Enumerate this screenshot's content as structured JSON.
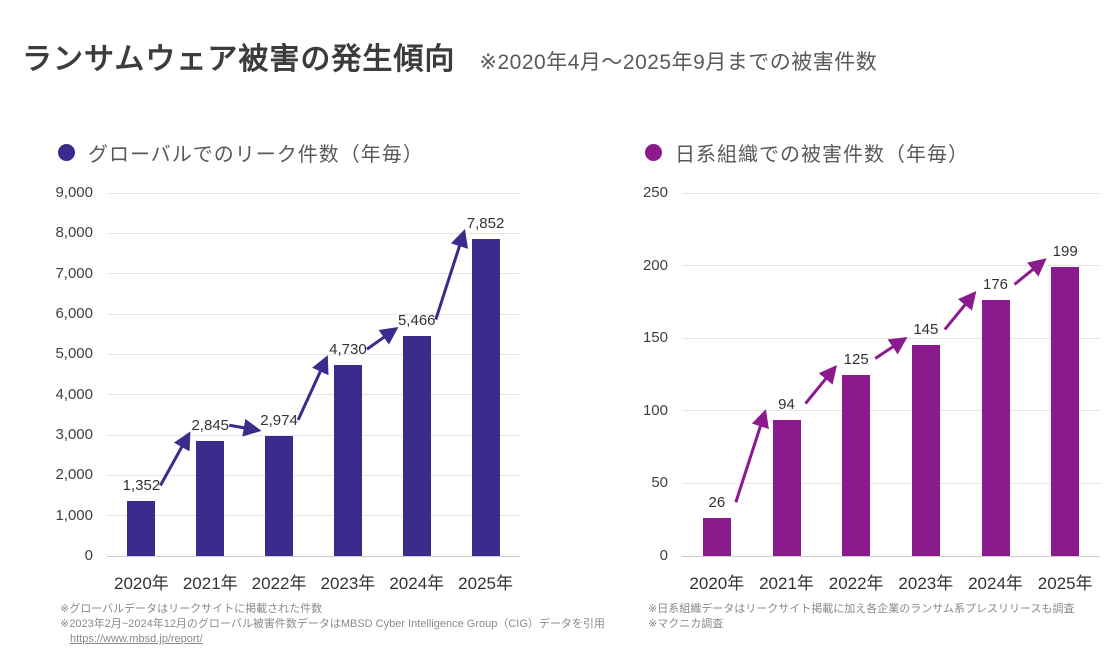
{
  "header": {
    "title": "ランサムウェア被害の発生傾向",
    "subtitle": "※2020年4月～2025年9月までの被害件数"
  },
  "chart_data": [
    {
      "type": "bar",
      "title": "グローバルでのリーク件数（年毎）",
      "legend_marker": "circle",
      "legend_position": "top-left",
      "categories": [
        "2020年",
        "2021年",
        "2022年",
        "2023年",
        "2024年",
        "2025年"
      ],
      "values": [
        1352,
        2845,
        2974,
        4730,
        5466,
        7852
      ],
      "value_labels": [
        "1,352",
        "2,845",
        "2,974",
        "4,730",
        "5,466",
        "7,852"
      ],
      "ylim": [
        0,
        9000
      ],
      "yticks": [
        0,
        1000,
        2000,
        3000,
        4000,
        5000,
        6000,
        7000,
        8000,
        9000
      ],
      "ytick_labels": [
        "0",
        "1,000",
        "2,000",
        "3,000",
        "4,000",
        "5,000",
        "6,000",
        "7,000",
        "8,000",
        "9,000"
      ],
      "bar_color": "#3B2B8C",
      "grid": true,
      "arrows_between_bars": true,
      "footnotes": [
        "※グローバルデータはリークサイトに掲載された件数",
        "※2023年2月~2024年12月のグローバル被害件数データはMBSD Cyber Intelligence Group（CIG）データを引用",
        "https://www.mbsd.jp/report/"
      ]
    },
    {
      "type": "bar",
      "title": "日系組織での被害件数（年毎）",
      "legend_marker": "circle",
      "legend_position": "top-left",
      "categories": [
        "2020年",
        "2021年",
        "2022年",
        "2023年",
        "2024年",
        "2025年"
      ],
      "values": [
        26,
        94,
        125,
        145,
        176,
        199
      ],
      "value_labels": [
        "26",
        "94",
        "125",
        "145",
        "176",
        "199"
      ],
      "ylim": [
        0,
        250
      ],
      "yticks": [
        0,
        50,
        100,
        150,
        200,
        250
      ],
      "ytick_labels": [
        "0",
        "50",
        "100",
        "150",
        "200",
        "250"
      ],
      "bar_color": "#8B1A8C",
      "grid": true,
      "arrows_between_bars": true,
      "footnotes": [
        "※日系組織データはリークサイト掲載に加え各企業のランサム系プレスリリースも調査",
        "※マクニカ調査"
      ]
    }
  ],
  "colors": {
    "title_text": "#3C3C3C",
    "subtitle_text": "#595959",
    "legend_text": "#595959",
    "gridline": "#E5E5E5",
    "axis_line": "#CCCCCC",
    "tick_text": "#404040",
    "data_label_text": "#333333",
    "footnote_text": "#8A8A8A",
    "background": "#FFFFFF",
    "global_bar": "#3B2B8C",
    "japan_bar": "#8B1A8C"
  }
}
